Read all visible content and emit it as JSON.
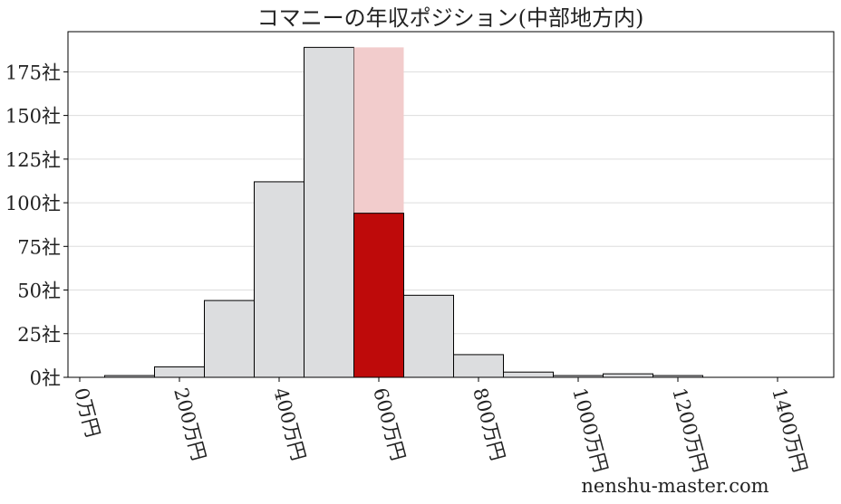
{
  "chart_data": {
    "type": "bar",
    "title": "コマニーの年収ポジション(中部地方内)",
    "xlabel": "",
    "ylabel": "",
    "bin_width": 100,
    "bin_starts": [
      50,
      150,
      250,
      350,
      450,
      550,
      650,
      750,
      850,
      950,
      1050,
      1150
    ],
    "values": [
      1,
      6,
      44,
      112,
      189,
      94,
      47,
      13,
      3,
      1,
      2,
      1
    ],
    "highlight": {
      "bin_start": 550,
      "value": 94,
      "background_value": 189,
      "color": "#be0a0a",
      "background_color": "#f2cccc"
    },
    "bar_color": "#dcdddf",
    "xlim": [
      -25,
      1500
    ],
    "ylim": [
      0,
      198
    ],
    "x_ticks": [
      0,
      200,
      400,
      600,
      800,
      1000,
      1200,
      1400
    ],
    "x_tick_labels": [
      "0万円",
      "200万円",
      "400万円",
      "600万円",
      "800万円",
      "1000万円",
      "1200万円",
      "1400万円"
    ],
    "y_ticks": [
      0,
      25,
      50,
      75,
      100,
      125,
      150,
      175
    ],
    "y_tick_labels": [
      "0社",
      "25社",
      "50社",
      "75社",
      "100社",
      "125社",
      "150社",
      "175社"
    ],
    "grid": "horizontal",
    "watermark": "nenshu-master.com"
  }
}
